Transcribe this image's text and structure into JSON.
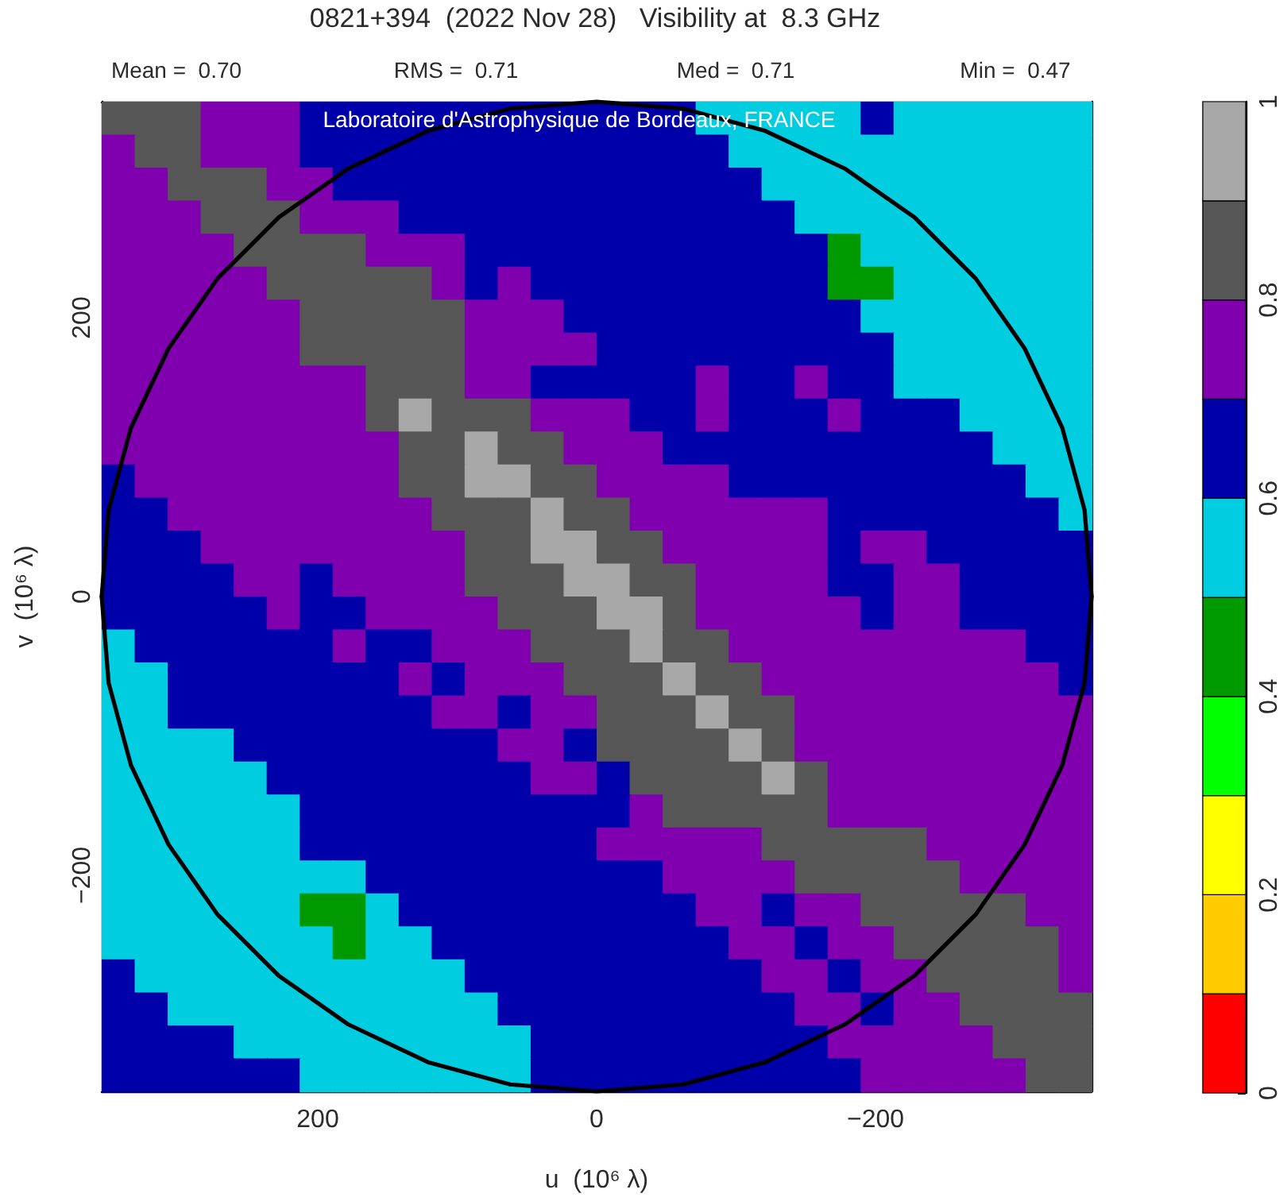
{
  "chart_data": {
    "type": "heatmap",
    "title": "0821+394  (2022 Nov 28)   Visibility at  8.3 GHz",
    "xlabel": "u  (10⁶ λ)",
    "ylabel": "v  (10⁶ λ)",
    "annotations": [
      "Mean =  0.70",
      "RMS =  0.71",
      "Med =  0.71",
      "Min =  0.47",
      "Laboratoire d'Astrophysique de Bordeaux, FRANCE"
    ],
    "xlim": [
      355,
      -355
    ],
    "ylim": [
      -355,
      355
    ],
    "xticks": [
      {
        "value": 300,
        "label": null
      },
      200,
      {
        "value": 100,
        "label": null
      },
      0,
      {
        "value": -100,
        "label": null
      },
      {
        "value": -200,
        "label": "−200"
      },
      {
        "value": -300,
        "label": null
      }
    ],
    "yticks": [
      {
        "value": -300,
        "label": null
      },
      {
        "value": -200,
        "label": "−200"
      },
      {
        "value": -100,
        "label": null
      },
      0,
      {
        "value": 100,
        "label": null
      },
      200,
      {
        "value": 300,
        "label": null
      }
    ],
    "clim": [
      0,
      1
    ],
    "cticks": [
      0,
      0.2,
      0.4,
      0.6,
      0.8,
      1
    ],
    "colors": [
      "#ff0000",
      "#ffcc00",
      "#ffff00",
      "#00ff00",
      "#009900",
      "#00cde0",
      "#0000aa",
      "#8000b0",
      "#575757",
      "#a8a8a8"
    ],
    "marker": "none",
    "cells": [
      [
        0.85,
        0.85,
        0.85,
        0.75,
        0.75,
        0.75,
        0.65,
        0.65,
        0.65,
        0.65,
        0.65,
        0.65,
        0.65,
        0.65,
        0.65,
        0.65,
        0.65,
        0.65,
        0.55,
        0.55,
        0.55,
        0.55,
        0.55,
        0.65,
        0.55,
        0.55,
        0.55,
        0.55,
        0.55,
        0.55
      ],
      [
        0.75,
        0.85,
        0.85,
        0.75,
        0.75,
        0.75,
        0.65,
        0.65,
        0.65,
        0.65,
        0.65,
        0.65,
        0.65,
        0.65,
        0.65,
        0.65,
        0.65,
        0.65,
        0.65,
        0.55,
        0.55,
        0.55,
        0.55,
        0.55,
        0.55,
        0.55,
        0.55,
        0.55,
        0.55,
        0.55
      ],
      [
        0.75,
        0.75,
        0.85,
        0.85,
        0.85,
        0.75,
        0.75,
        0.65,
        0.65,
        0.65,
        0.65,
        0.65,
        0.65,
        0.65,
        0.65,
        0.65,
        0.65,
        0.65,
        0.65,
        0.65,
        0.55,
        0.55,
        0.55,
        0.55,
        0.55,
        0.55,
        0.55,
        0.55,
        0.55,
        0.55
      ],
      [
        0.75,
        0.75,
        0.75,
        0.85,
        0.85,
        0.85,
        0.75,
        0.75,
        0.75,
        0.65,
        0.65,
        0.65,
        0.65,
        0.65,
        0.65,
        0.65,
        0.65,
        0.65,
        0.65,
        0.65,
        0.65,
        0.55,
        0.55,
        0.55,
        0.55,
        0.55,
        0.55,
        0.55,
        0.55,
        0.55
      ],
      [
        0.75,
        0.75,
        0.75,
        0.75,
        0.85,
        0.85,
        0.85,
        0.85,
        0.75,
        0.75,
        0.75,
        0.65,
        0.65,
        0.65,
        0.65,
        0.65,
        0.65,
        0.65,
        0.65,
        0.65,
        0.65,
        0.65,
        0.45,
        0.55,
        0.55,
        0.55,
        0.55,
        0.55,
        0.55,
        0.55
      ],
      [
        0.75,
        0.75,
        0.75,
        0.75,
        0.75,
        0.85,
        0.85,
        0.85,
        0.85,
        0.85,
        0.75,
        0.65,
        0.75,
        0.65,
        0.65,
        0.65,
        0.65,
        0.65,
        0.65,
        0.65,
        0.65,
        0.65,
        0.45,
        0.45,
        0.55,
        0.55,
        0.55,
        0.55,
        0.55,
        0.55
      ],
      [
        0.75,
        0.75,
        0.75,
        0.75,
        0.75,
        0.75,
        0.85,
        0.85,
        0.85,
        0.85,
        0.85,
        0.75,
        0.75,
        0.75,
        0.65,
        0.65,
        0.65,
        0.65,
        0.65,
        0.65,
        0.65,
        0.65,
        0.65,
        0.55,
        0.55,
        0.55,
        0.55,
        0.55,
        0.55,
        0.55
      ],
      [
        0.75,
        0.75,
        0.75,
        0.75,
        0.75,
        0.75,
        0.85,
        0.85,
        0.85,
        0.85,
        0.85,
        0.75,
        0.75,
        0.75,
        0.75,
        0.65,
        0.65,
        0.65,
        0.65,
        0.65,
        0.65,
        0.65,
        0.65,
        0.65,
        0.55,
        0.55,
        0.55,
        0.55,
        0.55,
        0.55
      ],
      [
        0.75,
        0.75,
        0.75,
        0.75,
        0.75,
        0.75,
        0.75,
        0.75,
        0.85,
        0.85,
        0.85,
        0.75,
        0.75,
        0.65,
        0.65,
        0.65,
        0.65,
        0.65,
        0.75,
        0.65,
        0.65,
        0.75,
        0.65,
        0.65,
        0.55,
        0.55,
        0.55,
        0.55,
        0.55,
        0.55
      ],
      [
        0.75,
        0.75,
        0.75,
        0.75,
        0.75,
        0.75,
        0.75,
        0.75,
        0.85,
        0.95,
        0.85,
        0.85,
        0.85,
        0.75,
        0.75,
        0.75,
        0.65,
        0.65,
        0.75,
        0.65,
        0.65,
        0.65,
        0.75,
        0.65,
        0.65,
        0.65,
        0.55,
        0.55,
        0.55,
        0.55
      ],
      [
        0.75,
        0.75,
        0.75,
        0.75,
        0.75,
        0.75,
        0.75,
        0.75,
        0.75,
        0.85,
        0.85,
        0.95,
        0.85,
        0.85,
        0.75,
        0.75,
        0.75,
        0.65,
        0.65,
        0.65,
        0.65,
        0.65,
        0.65,
        0.65,
        0.65,
        0.65,
        0.65,
        0.55,
        0.55,
        0.55
      ],
      [
        0.65,
        0.75,
        0.75,
        0.75,
        0.75,
        0.75,
        0.75,
        0.75,
        0.75,
        0.85,
        0.85,
        0.95,
        0.95,
        0.85,
        0.85,
        0.75,
        0.75,
        0.75,
        0.75,
        0.65,
        0.65,
        0.65,
        0.65,
        0.65,
        0.65,
        0.65,
        0.65,
        0.65,
        0.55,
        0.55
      ],
      [
        0.65,
        0.65,
        0.75,
        0.75,
        0.75,
        0.75,
        0.75,
        0.75,
        0.75,
        0.75,
        0.85,
        0.85,
        0.85,
        0.95,
        0.85,
        0.85,
        0.75,
        0.75,
        0.75,
        0.75,
        0.75,
        0.75,
        0.65,
        0.65,
        0.65,
        0.65,
        0.65,
        0.65,
        0.65,
        0.55
      ],
      [
        0.65,
        0.65,
        0.65,
        0.75,
        0.75,
        0.75,
        0.75,
        0.75,
        0.75,
        0.75,
        0.75,
        0.85,
        0.85,
        0.95,
        0.95,
        0.85,
        0.85,
        0.75,
        0.75,
        0.75,
        0.75,
        0.75,
        0.65,
        0.75,
        0.75,
        0.65,
        0.65,
        0.65,
        0.65,
        0.65
      ],
      [
        0.65,
        0.65,
        0.65,
        0.65,
        0.75,
        0.75,
        0.65,
        0.75,
        0.75,
        0.75,
        0.75,
        0.85,
        0.85,
        0.85,
        0.95,
        0.95,
        0.85,
        0.85,
        0.75,
        0.75,
        0.75,
        0.75,
        0.65,
        0.65,
        0.75,
        0.75,
        0.65,
        0.65,
        0.65,
        0.65
      ],
      [
        0.65,
        0.65,
        0.65,
        0.65,
        0.65,
        0.75,
        0.65,
        0.65,
        0.75,
        0.75,
        0.75,
        0.75,
        0.85,
        0.85,
        0.85,
        0.95,
        0.95,
        0.85,
        0.75,
        0.75,
        0.75,
        0.75,
        0.75,
        0.65,
        0.75,
        0.75,
        0.65,
        0.65,
        0.65,
        0.65
      ],
      [
        0.55,
        0.65,
        0.65,
        0.65,
        0.65,
        0.65,
        0.65,
        0.75,
        0.65,
        0.65,
        0.75,
        0.75,
        0.75,
        0.85,
        0.85,
        0.85,
        0.95,
        0.85,
        0.85,
        0.75,
        0.75,
        0.75,
        0.75,
        0.75,
        0.75,
        0.75,
        0.75,
        0.75,
        0.65,
        0.65
      ],
      [
        0.55,
        0.55,
        0.65,
        0.65,
        0.65,
        0.65,
        0.65,
        0.65,
        0.65,
        0.75,
        0.65,
        0.75,
        0.75,
        0.75,
        0.85,
        0.85,
        0.85,
        0.95,
        0.85,
        0.85,
        0.75,
        0.75,
        0.75,
        0.75,
        0.75,
        0.75,
        0.75,
        0.75,
        0.75,
        0.65
      ],
      [
        0.55,
        0.55,
        0.65,
        0.65,
        0.65,
        0.65,
        0.65,
        0.65,
        0.65,
        0.65,
        0.75,
        0.75,
        0.65,
        0.75,
        0.75,
        0.85,
        0.85,
        0.85,
        0.95,
        0.85,
        0.85,
        0.75,
        0.75,
        0.75,
        0.75,
        0.75,
        0.75,
        0.75,
        0.75,
        0.75
      ],
      [
        0.55,
        0.55,
        0.55,
        0.55,
        0.65,
        0.65,
        0.65,
        0.65,
        0.65,
        0.65,
        0.65,
        0.65,
        0.75,
        0.75,
        0.65,
        0.85,
        0.85,
        0.85,
        0.85,
        0.95,
        0.85,
        0.75,
        0.75,
        0.75,
        0.75,
        0.75,
        0.75,
        0.75,
        0.75,
        0.75
      ],
      [
        0.55,
        0.55,
        0.55,
        0.55,
        0.55,
        0.65,
        0.65,
        0.65,
        0.65,
        0.65,
        0.65,
        0.65,
        0.65,
        0.75,
        0.75,
        0.65,
        0.85,
        0.85,
        0.85,
        0.85,
        0.95,
        0.85,
        0.75,
        0.75,
        0.75,
        0.75,
        0.75,
        0.75,
        0.75,
        0.75
      ],
      [
        0.55,
        0.55,
        0.55,
        0.55,
        0.55,
        0.55,
        0.65,
        0.65,
        0.65,
        0.65,
        0.65,
        0.65,
        0.65,
        0.65,
        0.65,
        0.65,
        0.75,
        0.85,
        0.85,
        0.85,
        0.85,
        0.85,
        0.75,
        0.75,
        0.75,
        0.75,
        0.75,
        0.75,
        0.75,
        0.75
      ],
      [
        0.55,
        0.55,
        0.55,
        0.55,
        0.55,
        0.55,
        0.65,
        0.65,
        0.65,
        0.65,
        0.65,
        0.65,
        0.65,
        0.65,
        0.65,
        0.75,
        0.75,
        0.75,
        0.75,
        0.75,
        0.85,
        0.85,
        0.85,
        0.85,
        0.85,
        0.75,
        0.75,
        0.75,
        0.75,
        0.75
      ],
      [
        0.55,
        0.55,
        0.55,
        0.55,
        0.55,
        0.55,
        0.55,
        0.55,
        0.65,
        0.65,
        0.65,
        0.65,
        0.65,
        0.65,
        0.65,
        0.65,
        0.65,
        0.75,
        0.75,
        0.75,
        0.75,
        0.85,
        0.85,
        0.85,
        0.85,
        0.85,
        0.75,
        0.75,
        0.75,
        0.75
      ],
      [
        0.55,
        0.55,
        0.55,
        0.55,
        0.55,
        0.55,
        0.45,
        0.45,
        0.55,
        0.65,
        0.65,
        0.65,
        0.65,
        0.65,
        0.65,
        0.65,
        0.65,
        0.65,
        0.75,
        0.75,
        0.65,
        0.75,
        0.75,
        0.85,
        0.85,
        0.85,
        0.85,
        0.85,
        0.75,
        0.75
      ],
      [
        0.55,
        0.55,
        0.55,
        0.55,
        0.55,
        0.55,
        0.55,
        0.45,
        0.55,
        0.55,
        0.65,
        0.65,
        0.65,
        0.65,
        0.65,
        0.65,
        0.65,
        0.65,
        0.65,
        0.75,
        0.75,
        0.65,
        0.75,
        0.75,
        0.85,
        0.85,
        0.85,
        0.85,
        0.85,
        0.75
      ],
      [
        0.65,
        0.55,
        0.55,
        0.55,
        0.55,
        0.55,
        0.55,
        0.55,
        0.55,
        0.55,
        0.55,
        0.65,
        0.65,
        0.65,
        0.65,
        0.65,
        0.65,
        0.65,
        0.65,
        0.65,
        0.75,
        0.75,
        0.65,
        0.75,
        0.75,
        0.85,
        0.85,
        0.85,
        0.85,
        0.75
      ],
      [
        0.65,
        0.65,
        0.55,
        0.55,
        0.55,
        0.55,
        0.55,
        0.55,
        0.55,
        0.55,
        0.55,
        0.55,
        0.65,
        0.65,
        0.65,
        0.65,
        0.65,
        0.65,
        0.65,
        0.65,
        0.65,
        0.75,
        0.75,
        0.65,
        0.75,
        0.75,
        0.85,
        0.85,
        0.85,
        0.85
      ],
      [
        0.65,
        0.65,
        0.65,
        0.65,
        0.55,
        0.55,
        0.55,
        0.55,
        0.55,
        0.55,
        0.55,
        0.55,
        0.55,
        0.65,
        0.65,
        0.65,
        0.65,
        0.65,
        0.65,
        0.65,
        0.65,
        0.65,
        0.75,
        0.75,
        0.75,
        0.75,
        0.75,
        0.85,
        0.85,
        0.85
      ],
      [
        0.65,
        0.65,
        0.65,
        0.65,
        0.65,
        0.65,
        0.55,
        0.55,
        0.55,
        0.55,
        0.55,
        0.55,
        0.55,
        0.65,
        0.65,
        0.65,
        0.65,
        0.65,
        0.65,
        0.65,
        0.65,
        0.65,
        0.65,
        0.75,
        0.75,
        0.75,
        0.75,
        0.75,
        0.85,
        0.85
      ]
    ],
    "series": [
      {
        "type": "line",
        "color": "#000000",
        "x": [
          355,
          350,
          334,
          307,
          272,
          228,
          178,
          121,
          62,
          0,
          -62,
          -121,
          -178,
          -228,
          -272,
          -307,
          -334,
          -350,
          -355
        ],
        "values": [
          0,
          62,
          121,
          178,
          228,
          272,
          307,
          334,
          350,
          355,
          350,
          334,
          307,
          272,
          228,
          178,
          121,
          62,
          0
        ]
      },
      {
        "type": "line",
        "color": "#000000",
        "x": [
          355,
          350,
          334,
          307,
          272,
          228,
          178,
          121,
          62,
          0,
          -62,
          -121,
          -178,
          -228,
          -272,
          -307,
          -334,
          -350,
          -355
        ],
        "values": [
          0,
          -62,
          -121,
          -178,
          -228,
          -272,
          -307,
          -334,
          -350,
          -355,
          -350,
          -334,
          -307,
          -272,
          -228,
          -178,
          -121,
          -62,
          0
        ]
      }
    ]
  }
}
